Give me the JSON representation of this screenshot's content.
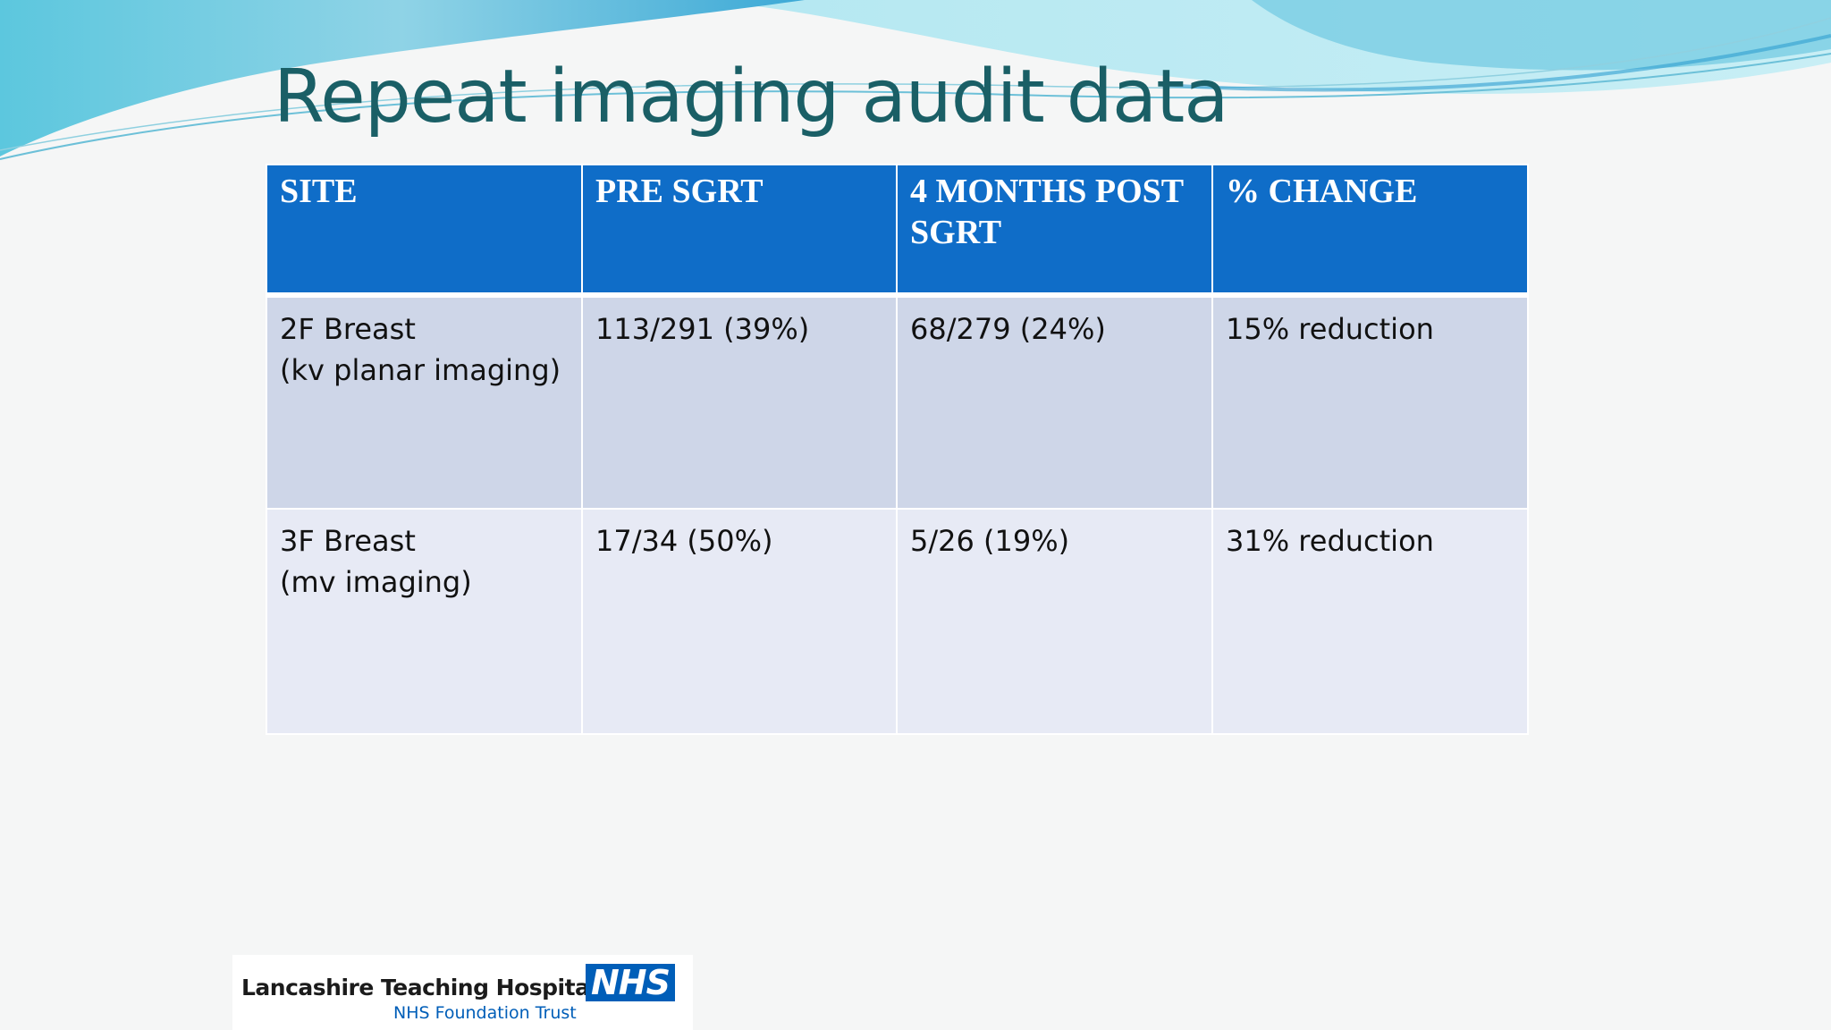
{
  "slide": {
    "title": "Repeat imaging audit data"
  },
  "table": {
    "headers": [
      "SITE",
      "PRE SGRT",
      "4 MONTHS POST SGRT",
      "% CHANGE"
    ],
    "rows": [
      {
        "site_line1": "2F Breast",
        "site_line2": "(kv planar imaging)",
        "pre": "113/291 (39%)",
        "post": "68/279 (24%)",
        "change": "15% reduction"
      },
      {
        "site_line1": "3F Breast",
        "site_line2": "(mv imaging)",
        "pre": "17/34 (50%)",
        "post": "5/26 (19%)",
        "change": "31% reduction"
      }
    ]
  },
  "footer": {
    "org_name": "Lancashire Teaching Hospitals",
    "badge": "NHS",
    "trust": "NHS Foundation Trust"
  },
  "colors": {
    "title": "#1a5f66",
    "header_bg": "#0f6dc8",
    "row_odd_bg": "#ced6e8",
    "row_even_bg": "#e7eaf5",
    "nhs_blue": "#005eb8"
  }
}
